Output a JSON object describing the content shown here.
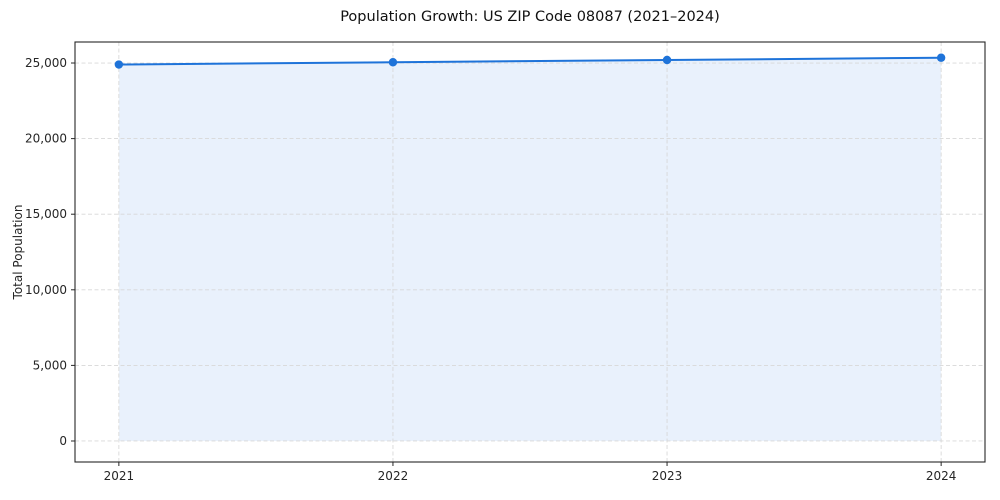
{
  "chart_data": {
    "type": "area",
    "title": "Population Growth: US ZIP Code 08087 (2021–2024)",
    "xlabel": "",
    "ylabel": "Total Population",
    "x": [
      2021,
      2022,
      2023,
      2024
    ],
    "xtick_labels": [
      "2021",
      "2022",
      "2023",
      "2024"
    ],
    "series": [
      {
        "name": "Total Population",
        "values": [
          24900,
          25050,
          25200,
          25350
        ]
      }
    ],
    "baseline": 0,
    "xlim": [
      2020.84,
      2024.16
    ],
    "ylim": [
      -1390,
      26390
    ],
    "yticks": [
      0,
      5000,
      10000,
      15000,
      20000,
      25000
    ],
    "ytick_labels": [
      "0",
      "5,000",
      "10,000",
      "15,000",
      "20,000",
      "25,000"
    ],
    "grid": true,
    "grid_style": "dashed",
    "legend_position": "none",
    "colors": {
      "line": "#1e73d9",
      "marker": "#1e73d9",
      "area_fill": "#e9f1fc",
      "grid": "#d8d8d8",
      "spine": "#262626",
      "tick_text": "#262626",
      "title_text": "#111111",
      "background": "#ffffff"
    }
  }
}
